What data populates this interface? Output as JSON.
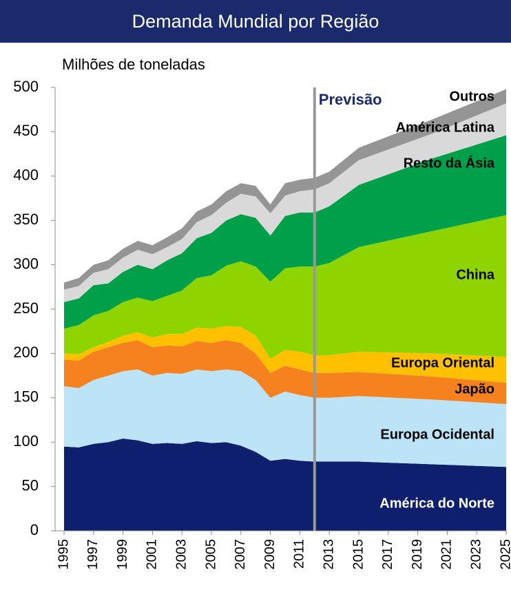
{
  "chart_data": {
    "type": "stacked_area",
    "title": "Demanda Mundial por Região",
    "subtitle": "Milhões de toneladas",
    "annotation": "Previsão",
    "forecast_start": 2012,
    "x": [
      1995,
      1996,
      1997,
      1998,
      1999,
      2000,
      2001,
      2002,
      2003,
      2004,
      2005,
      2006,
      2007,
      2008,
      2009,
      2010,
      2011,
      2012,
      2013,
      2015,
      2020,
      2025
    ],
    "xlim": [
      1995,
      2025
    ],
    "xticks": [
      1995,
      1997,
      1999,
      2001,
      2003,
      2005,
      2007,
      2009,
      2011,
      2013,
      2015,
      2017,
      2019,
      2021,
      2023,
      2025
    ],
    "ylim": [
      0,
      500
    ],
    "yticks": [
      0,
      50,
      100,
      150,
      200,
      250,
      300,
      350,
      400,
      450,
      500
    ],
    "series": [
      {
        "name": "América do Norte",
        "color": "#0e1f6e",
        "values": [
          95,
          94,
          98,
          100,
          104,
          102,
          98,
          99,
          98,
          101,
          99,
          100,
          96,
          89,
          79,
          81,
          79,
          78,
          78,
          78,
          75,
          72
        ]
      },
      {
        "name": "Europa Ocidental",
        "color": "#bde3f7",
        "values": [
          68,
          67,
          72,
          75,
          76,
          80,
          77,
          79,
          79,
          81,
          81,
          82,
          84,
          81,
          71,
          76,
          74,
          72,
          72,
          74,
          73,
          71
        ]
      },
      {
        "name": "Japão",
        "color": "#f5821f",
        "values": [
          30,
          31,
          32,
          32,
          32,
          33,
          32,
          31,
          31,
          32,
          32,
          33,
          32,
          30,
          28,
          29,
          29,
          28,
          28,
          27,
          26,
          24
        ]
      },
      {
        "name": "Europa Oriental",
        "color": "#ffc000",
        "values": [
          7,
          7,
          5,
          6,
          8,
          9,
          11,
          13,
          14,
          15,
          16,
          16,
          18,
          20,
          16,
          18,
          20,
          20,
          20,
          23,
          26,
          29
        ]
      },
      {
        "name": "China",
        "color": "#8ed400",
        "values": [
          28,
          33,
          36,
          35,
          38,
          39,
          41,
          43,
          49,
          56,
          60,
          68,
          74,
          78,
          87,
          92,
          96,
          100,
          104,
          118,
          138,
          160
        ]
      },
      {
        "name": "Resto da Ásia",
        "color": "#00a04a",
        "values": [
          30,
          30,
          34,
          31,
          34,
          37,
          36,
          40,
          42,
          45,
          48,
          51,
          53,
          55,
          52,
          59,
          61,
          61,
          64,
          70,
          82,
          90
        ]
      },
      {
        "name": "América Latina",
        "color": "#d9d9d9",
        "values": [
          14,
          14,
          14,
          16,
          16,
          17,
          17,
          15,
          16,
          18,
          20,
          20,
          23,
          24,
          25,
          23,
          24,
          26,
          26,
          28,
          28,
          36
        ]
      },
      {
        "name": "Outros",
        "color": "#959595",
        "values": [
          8,
          9,
          9,
          10,
          10,
          10,
          10,
          11,
          12,
          12,
          12,
          13,
          12,
          12,
          10,
          14,
          13,
          13,
          13,
          14,
          16,
          16
        ]
      }
    ]
  }
}
